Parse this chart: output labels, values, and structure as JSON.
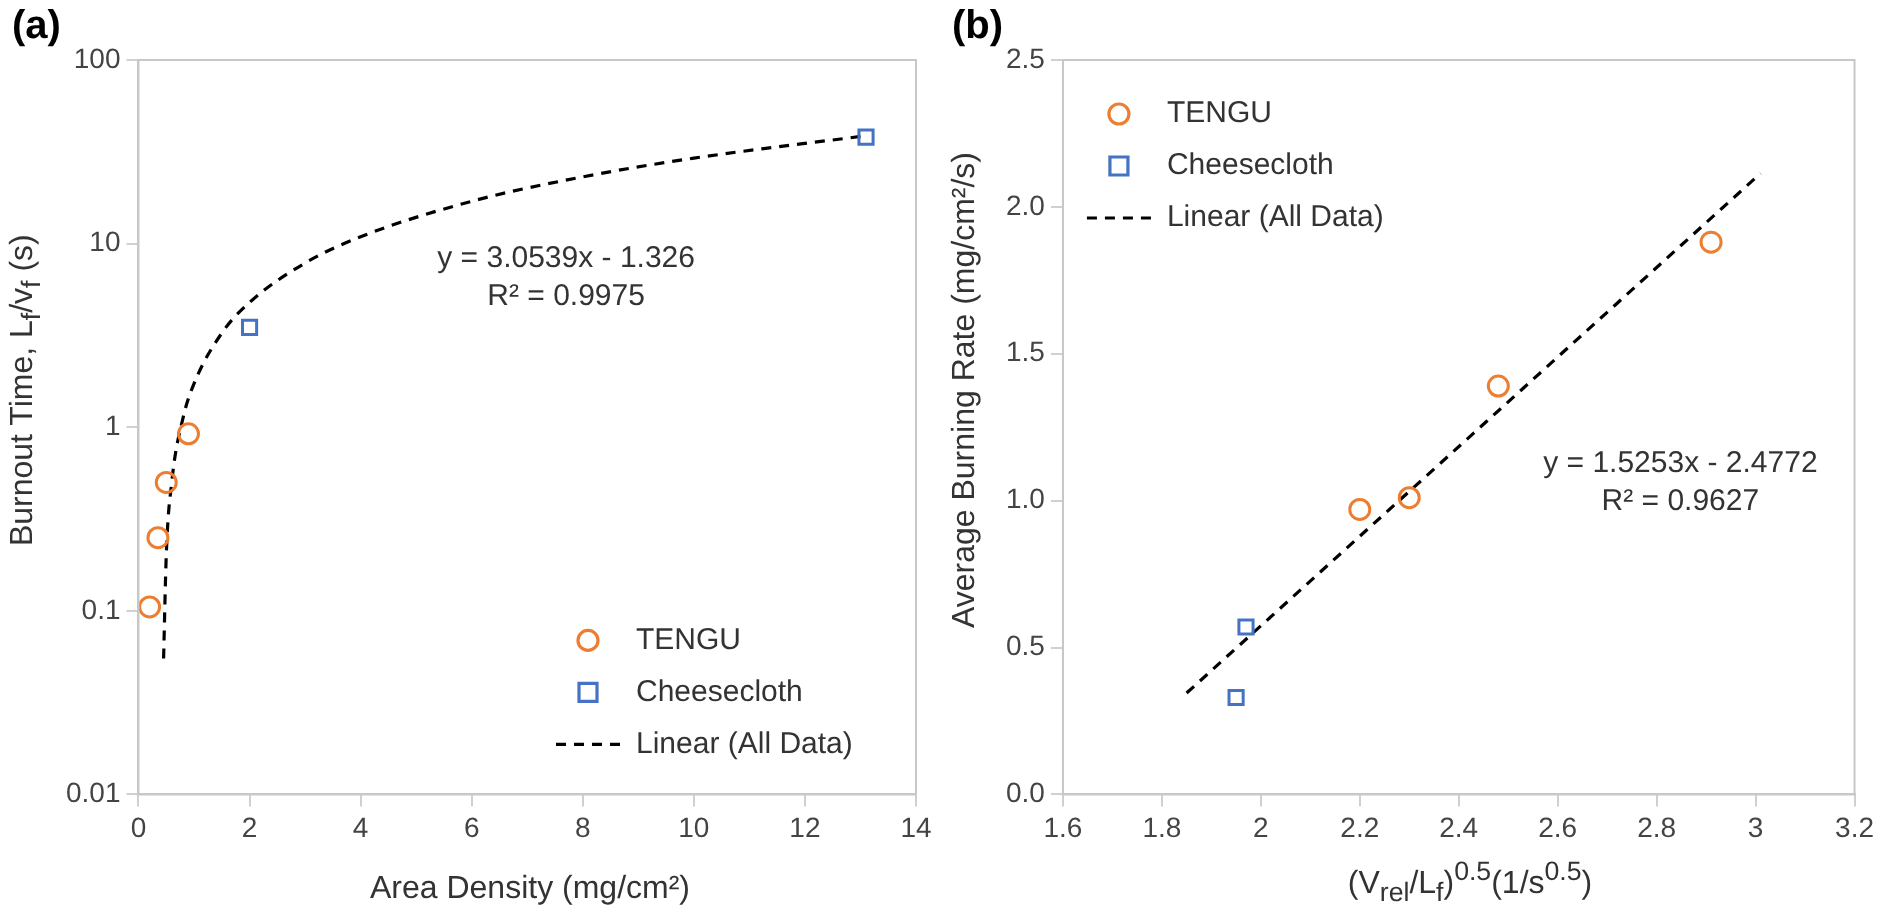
{
  "chart_data": [
    {
      "type": "scatter",
      "title": "(a)",
      "xlabel": "Area Density (mg/cm²)",
      "ylabel": "Burnout Time, L$_{f}$/v$_{f}$ (s)",
      "log": "y",
      "grid": false,
      "legend": "bottom right",
      "xlim": [
        0,
        14
      ],
      "xticks": [
        0,
        2,
        4,
        6,
        8,
        10,
        12,
        14
      ],
      "ylim": [
        0.01,
        100
      ],
      "yticks": [
        0.01,
        0.1,
        1,
        10,
        100
      ],
      "annotations": [
        "y = 3.0539x - 1.326",
        "R² = 0.9975"
      ],
      "series": [
        {
          "name": "TENGU",
          "type": "scatter",
          "marker": "circle",
          "color": "#ed7d31",
          "x": [
            0.2,
            0.35,
            0.5,
            0.9
          ],
          "values": [
            0.105,
            0.25,
            0.5,
            0.92
          ]
        },
        {
          "name": "Cheesecloth",
          "type": "scatter",
          "marker": "square",
          "color": "#4472c4",
          "x": [
            2,
            13.1
          ],
          "values": [
            3.5,
            38
          ]
        },
        {
          "name": "Linear (All Data)",
          "type": "line",
          "marker": "none",
          "line_style": "dashed",
          "color": "#000000",
          "x": [
            0.452,
            0.5,
            0.6,
            0.8,
            1,
            1.5,
            2,
            3,
            4,
            6,
            8,
            10,
            13.1
          ],
          "values": [
            0.055,
            0.201,
            0.506,
            1.117,
            1.728,
            3.255,
            4.782,
            7.836,
            10.89,
            17.0,
            23.1,
            29.2,
            38.68
          ]
        }
      ]
    },
    {
      "type": "scatter",
      "title": "(b)",
      "xlabel": "(V$_{rel}$/L$_{f}$)$^{0.5}$(1/s$^{0.5}$)",
      "ylabel": "Average Burning Rate (mg/cm²/s)",
      "grid": false,
      "legend": "top left",
      "xlim": [
        1.6,
        3.2
      ],
      "xticks": [
        1.6,
        1.8,
        2,
        2.2,
        2.4,
        2.6,
        2.8,
        3,
        3.2
      ],
      "ylim": [
        0,
        2.5
      ],
      "yticks": [
        {
          "value": 0,
          "label": "0.0"
        },
        {
          "value": 0.5,
          "label": "0.5"
        },
        {
          "value": 1,
          "label": "1.0"
        },
        {
          "value": 1.5,
          "label": "1.5"
        },
        {
          "value": 2,
          "label": "2.0"
        },
        {
          "value": 2.5,
          "label": "2.5"
        }
      ],
      "annotations": [
        "y = 1.5253x - 2.4772",
        "R² = 0.9627"
      ],
      "series": [
        {
          "name": "TENGU",
          "type": "scatter",
          "marker": "circle",
          "color": "#ed7d31",
          "x": [
            2.2,
            2.3,
            2.48,
            2.91
          ],
          "values": [
            0.97,
            1.01,
            1.39,
            1.88
          ]
        },
        {
          "name": "Cheesecloth",
          "type": "scatter",
          "marker": "square",
          "color": "#4472c4",
          "x": [
            1.95,
            1.97
          ],
          "values": [
            0.33,
            0.57
          ]
        },
        {
          "name": "Linear (All Data)",
          "type": "line",
          "marker": "none",
          "line_style": "dashed",
          "color": "#000000",
          "x": [
            1.85,
            3.01
          ],
          "values": [
            0.345,
            2.114
          ]
        }
      ]
    }
  ]
}
